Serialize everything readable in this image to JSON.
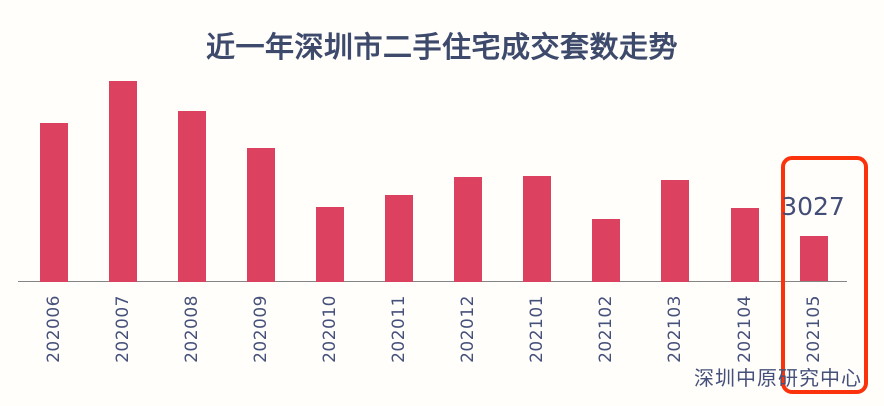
{
  "page": {
    "background_color": "#FFFEFB"
  },
  "chart_data": {
    "type": "bar",
    "title": "近一年深圳市二手住宅成交套数走势",
    "source": "深圳中原研究中心",
    "categories": [
      "202006",
      "202007",
      "202008",
      "202009",
      "202010",
      "202011",
      "202012",
      "202101",
      "202102",
      "202103",
      "202104",
      "202105"
    ],
    "values": [
      10600,
      13400,
      11350,
      8900,
      5000,
      5800,
      6950,
      7050,
      4200,
      6800,
      4900,
      3027
    ],
    "annotation": {
      "text": "3027",
      "category": "202105"
    },
    "highlight": {
      "category": "202105",
      "style": "rounded-rect-outline"
    },
    "note": "Only the 202105 bar carries a data label (3027); other values are estimated from bar heights.",
    "xlabel": "",
    "ylabel": "",
    "value_axis": "hidden",
    "grid": false,
    "legend": "none",
    "x_tick_rotation": 90,
    "colors": {
      "bar": "#DC4160",
      "highlight_outline": "#FB330D",
      "title_text": "#3E4A6C",
      "axis_label_text": "#46517B",
      "annotation_text": "#424E75",
      "axis_line": "#858585"
    }
  }
}
